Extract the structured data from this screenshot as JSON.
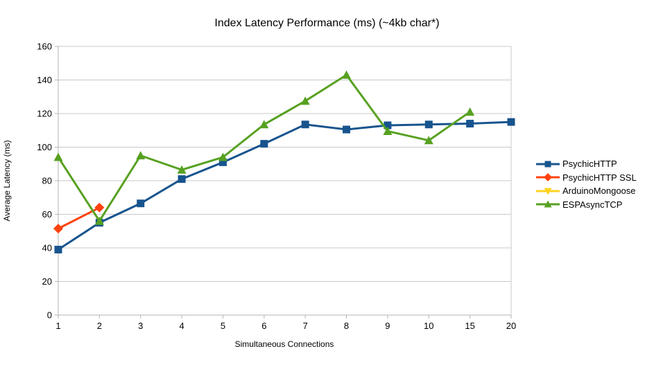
{
  "chart_data": {
    "type": "line",
    "title": "Index Latency Performance (ms) (~4kb char*)",
    "xlabel": "Simultaneous Connections",
    "ylabel": "Average Latency (ms)",
    "categories": [
      "1",
      "2",
      "3",
      "4",
      "5",
      "6",
      "7",
      "8",
      "9",
      "10",
      "15",
      "20"
    ],
    "ylim": [
      0,
      160
    ],
    "ytick_step": 20,
    "grid": "horizontal",
    "legend_position": "right",
    "series": [
      {
        "name": "PsychicHTTP",
        "color": "#17548E",
        "marker": "square",
        "values": [
          39,
          55,
          66.5,
          81,
          91,
          102,
          113.5,
          110.5,
          113,
          113.5,
          114,
          115
        ]
      },
      {
        "name": "PsychicHTTP SSL",
        "color": "#FF420E",
        "marker": "diamond",
        "values": [
          51.5,
          64,
          null,
          null,
          null,
          null,
          null,
          null,
          null,
          null,
          null,
          null
        ]
      },
      {
        "name": "ArduinoMongoose",
        "color": "#FFD320",
        "marker": "triangle-down",
        "values": [
          null,
          null,
          null,
          null,
          null,
          null,
          null,
          null,
          null,
          null,
          null,
          null
        ]
      },
      {
        "name": "ESPAsyncTCP",
        "color": "#57A121",
        "marker": "triangle-up",
        "values": [
          94,
          56,
          95,
          86.5,
          94,
          113.5,
          127.5,
          143,
          109.5,
          104,
          121,
          null
        ]
      }
    ]
  },
  "colors": {
    "gridline": "#C9C9C9",
    "axis": "#B3B3B3",
    "tick_text": "#000000",
    "background": "#FFFFFF"
  }
}
